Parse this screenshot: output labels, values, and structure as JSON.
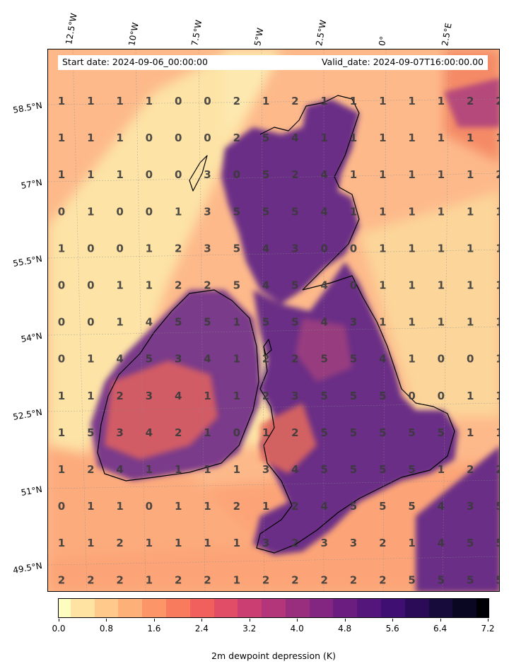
{
  "header": {
    "start_date": "Start date: 2024-09-06_00:00:00",
    "valid_date": "Valid_date: 2024-09-07T16:00:00.00"
  },
  "axes": {
    "lon_labels": [
      "12.5°W",
      "10°W",
      "7.5°W",
      "5°W",
      "2.5°W",
      "0°",
      "2.5°E"
    ],
    "lat_labels": [
      "58.5°N",
      "57°N",
      "55.5°N",
      "54°N",
      "52.5°N",
      "51°N",
      "49.5°N"
    ]
  },
  "colorbar": {
    "label": "2m dewpoint depression (K)",
    "ticks": [
      "0.0",
      "0.8",
      "1.6",
      "2.4",
      "3.2",
      "4.0",
      "4.8",
      "5.6",
      "6.4",
      "7.2"
    ],
    "colormap": "magma_r",
    "range": [
      0.0,
      7.2
    ]
  },
  "grid_values": [
    [
      "1",
      "1",
      "1",
      "1",
      "0",
      "0",
      "2",
      "1",
      "2",
      "1",
      "1",
      "1",
      "1",
      "1",
      "2",
      "2"
    ],
    [
      "1",
      "1",
      "1",
      "0",
      "0",
      "0",
      "2",
      "5",
      "4",
      "1",
      "1",
      "1",
      "1",
      "1",
      "1",
      "1"
    ],
    [
      "1",
      "1",
      "1",
      "0",
      "0",
      "3",
      "0",
      "5",
      "2",
      "4",
      "1",
      "1",
      "1",
      "1",
      "1",
      "2"
    ],
    [
      "0",
      "1",
      "0",
      "0",
      "1",
      "3",
      "5",
      "5",
      "5",
      "4",
      "1",
      "1",
      "1",
      "1",
      "1",
      "1"
    ],
    [
      "1",
      "0",
      "0",
      "1",
      "2",
      "3",
      "5",
      "4",
      "3",
      "0",
      "0",
      "1",
      "1",
      "1",
      "1",
      "1"
    ],
    [
      "0",
      "0",
      "1",
      "1",
      "2",
      "2",
      "5",
      "4",
      "5",
      "4",
      "0",
      "1",
      "1",
      "1",
      "1",
      "1"
    ],
    [
      "0",
      "0",
      "1",
      "4",
      "5",
      "5",
      "1",
      "5",
      "5",
      "4",
      "3",
      "1",
      "1",
      "1",
      "1",
      "1"
    ],
    [
      "0",
      "1",
      "4",
      "5",
      "3",
      "4",
      "1",
      "2",
      "2",
      "5",
      "5",
      "4",
      "1",
      "0",
      "0",
      "1"
    ],
    [
      "1",
      "1",
      "2",
      "3",
      "4",
      "1",
      "1",
      "2",
      "3",
      "5",
      "5",
      "5",
      "0",
      "0",
      "1",
      "1"
    ],
    [
      "1",
      "5",
      "3",
      "4",
      "2",
      "1",
      "0",
      "1",
      "2",
      "5",
      "5",
      "5",
      "5",
      "5",
      "1",
      "1"
    ],
    [
      "1",
      "2",
      "4",
      "1",
      "1",
      "1",
      "1",
      "3",
      "4",
      "5",
      "5",
      "5",
      "5",
      "1",
      "2",
      "2"
    ],
    [
      "0",
      "1",
      "1",
      "0",
      "1",
      "1",
      "2",
      "1",
      "2",
      "4",
      "5",
      "5",
      "5",
      "4",
      "3",
      "5"
    ],
    [
      "1",
      "1",
      "2",
      "1",
      "1",
      "1",
      "1",
      "3",
      "2",
      "3",
      "3",
      "2",
      "1",
      "4",
      "5",
      "5"
    ],
    [
      "2",
      "2",
      "2",
      "1",
      "2",
      "2",
      "1",
      "2",
      "2",
      "2",
      "2",
      "2",
      "5",
      "5",
      "5",
      "5"
    ]
  ]
}
